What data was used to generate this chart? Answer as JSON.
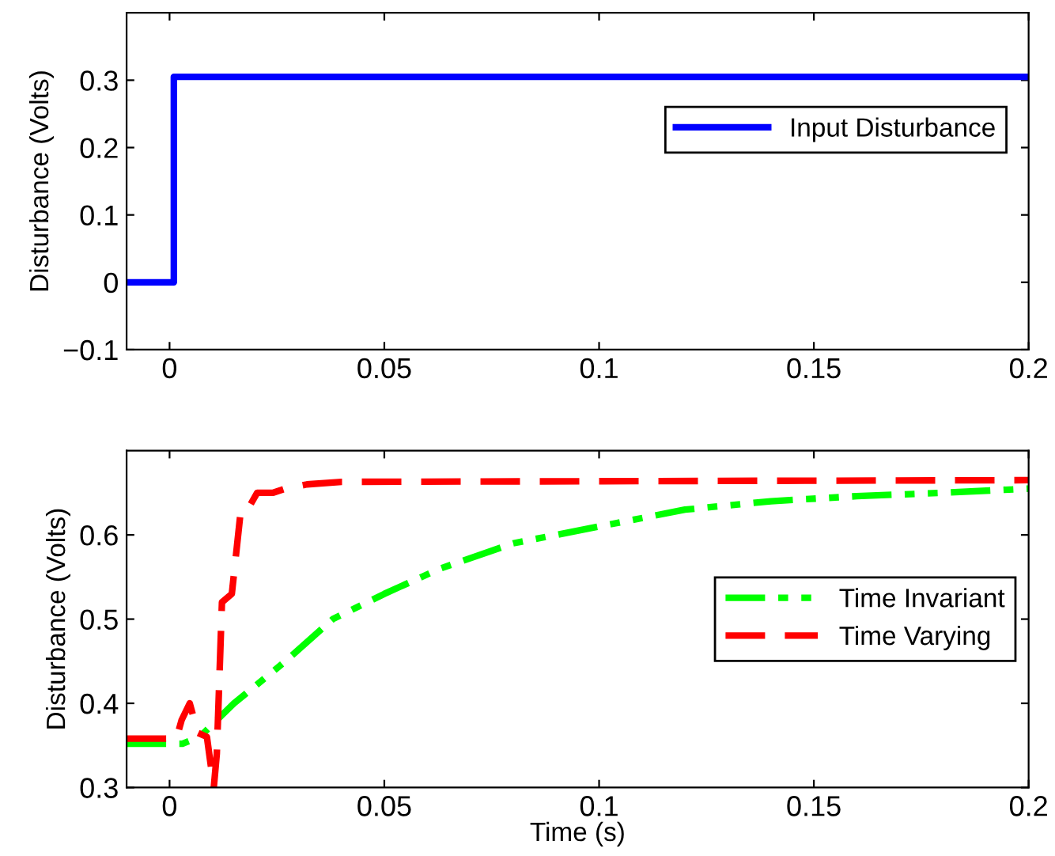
{
  "chart_data": [
    {
      "type": "line",
      "ylabel": "Disturbance (Volts)",
      "xlim": [
        -0.01,
        0.2
      ],
      "ylim": [
        -0.1,
        0.4
      ],
      "xticks": [
        0,
        0.05,
        0.1,
        0.15,
        0.2
      ],
      "yticks": [
        -0.1,
        0,
        0.1,
        0.2,
        0.3
      ],
      "legend": "top right",
      "grid": false,
      "series": [
        {
          "name": "Input Disturbance",
          "color": "#0000ff",
          "line_style": "solid",
          "x": [
            -0.01,
            0.001,
            0.001,
            0.2
          ],
          "values": [
            0,
            0,
            0.305,
            0.305
          ]
        }
      ]
    },
    {
      "type": "line",
      "xlabel": "Time (s)",
      "ylabel": "Disturbance (Volts)",
      "xlim": [
        -0.01,
        0.2
      ],
      "ylim": [
        0.3,
        0.7
      ],
      "xticks": [
        0,
        0.05,
        0.1,
        0.15,
        0.2
      ],
      "yticks": [
        0.3,
        0.4,
        0.5,
        0.6
      ],
      "legend": "right",
      "grid": false,
      "series": [
        {
          "name": "Time Invariant",
          "color": "#00ff00",
          "line_style": "dashdot",
          "x": [
            -0.01,
            0.003,
            0.007,
            0.01,
            0.015,
            0.027,
            0.038,
            0.05,
            0.063,
            0.08,
            0.1,
            0.12,
            0.14,
            0.16,
            0.18,
            0.2
          ],
          "values": [
            0.352,
            0.352,
            0.36,
            0.375,
            0.4,
            0.45,
            0.5,
            0.53,
            0.56,
            0.59,
            0.61,
            0.63,
            0.64,
            0.646,
            0.65,
            0.655
          ]
        },
        {
          "name": "Time Varying",
          "color": "#ff0000",
          "line_style": "dashed",
          "x": [
            -0.01,
            0.0016,
            0.0028,
            0.0047,
            0.0066,
            0.0087,
            0.0103,
            0.011,
            0.0122,
            0.0145,
            0.0166,
            0.0185,
            0.0204,
            0.024,
            0.027,
            0.032,
            0.04,
            0.2
          ],
          "values": [
            0.358,
            0.358,
            0.38,
            0.4,
            0.365,
            0.36,
            0.3,
            0.34,
            0.52,
            0.53,
            0.63,
            0.633,
            0.65,
            0.65,
            0.655,
            0.66,
            0.663,
            0.665
          ]
        }
      ]
    }
  ]
}
